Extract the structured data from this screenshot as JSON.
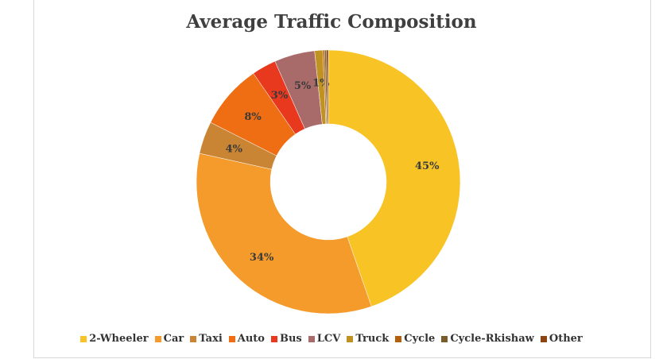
{
  "chart_data": {
    "type": "pie",
    "style": "donut",
    "title": "Average Traffic Composition",
    "legend_position": "bottom",
    "series": [
      {
        "name": "2-Wheeler",
        "value": 45,
        "label": "45%",
        "color": "#f7c325"
      },
      {
        "name": "Car",
        "value": 34,
        "label": "34%",
        "color": "#f49b2c"
      },
      {
        "name": "Taxi",
        "value": 4,
        "label": "4%",
        "color": "#c98534"
      },
      {
        "name": "Auto",
        "value": 8,
        "label": "8%",
        "color": "#ef6e14"
      },
      {
        "name": "Bus",
        "value": 3,
        "label": "3%",
        "color": "#e8391f"
      },
      {
        "name": "LCV",
        "value": 5,
        "label": "5%",
        "color": "#a96a6a"
      },
      {
        "name": "Truck",
        "value": 1,
        "label": "1%",
        "color": "#c09222"
      },
      {
        "name": "Cycle",
        "value": 0,
        "label": "",
        "color": "#b45f0c"
      },
      {
        "name": "Cycle-Rkishaw",
        "value": 0,
        "label": "",
        "color": "#7a5c2a"
      },
      {
        "name": "Other",
        "value": 0,
        "label": "",
        "color": "#8b4513"
      }
    ]
  }
}
